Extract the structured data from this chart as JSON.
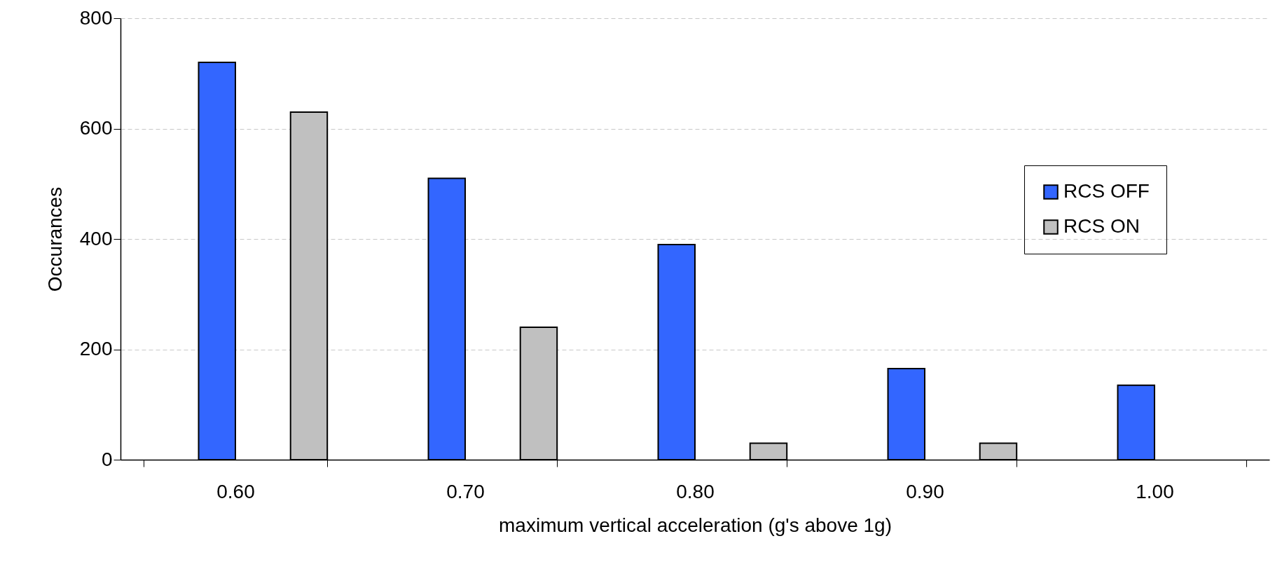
{
  "chart_data": {
    "type": "bar",
    "xlabel": "maximum vertical acceleration (g's above 1g)",
    "ylabel": "Occurances",
    "categories": [
      "0.60",
      "0.70",
      "0.80",
      "0.90",
      "1.00"
    ],
    "series": [
      {
        "name": "RCS OFF",
        "color": "#3366ff",
        "values": [
          720,
          510,
          390,
          165,
          135
        ]
      },
      {
        "name": "RCS ON",
        "color": "#c0c0c0",
        "values": [
          630,
          240,
          30,
          30,
          null
        ]
      }
    ],
    "ylim": [
      0,
      800
    ],
    "yticks": [
      0,
      200,
      400,
      600,
      800
    ],
    "grid": "y",
    "legend": "right"
  }
}
